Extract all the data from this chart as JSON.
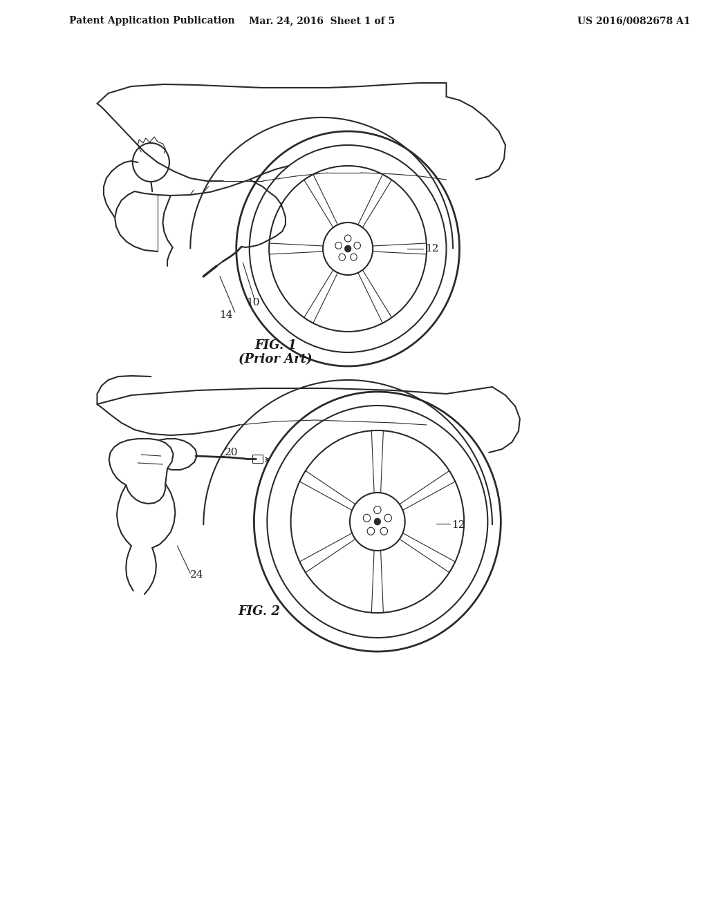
{
  "background_color": "#ffffff",
  "header_left": "Patent Application Publication",
  "header_mid": "Mar. 24, 2016  Sheet 1 of 5",
  "header_right": "US 2016/0082678 A1",
  "fig1_label": "FIG. 1",
  "fig1_sublabel": "(Prior Art)",
  "fig2_label": "FIG. 2",
  "label_10": "10",
  "label_12_fig1": "12",
  "label_14": "14",
  "label_12_fig2": "12",
  "label_20": "20",
  "label_24": "24",
  "text_color": "#1a1a1a",
  "line_color": "#2a2a2a",
  "line_width": 1.5,
  "thin_line": 0.8
}
